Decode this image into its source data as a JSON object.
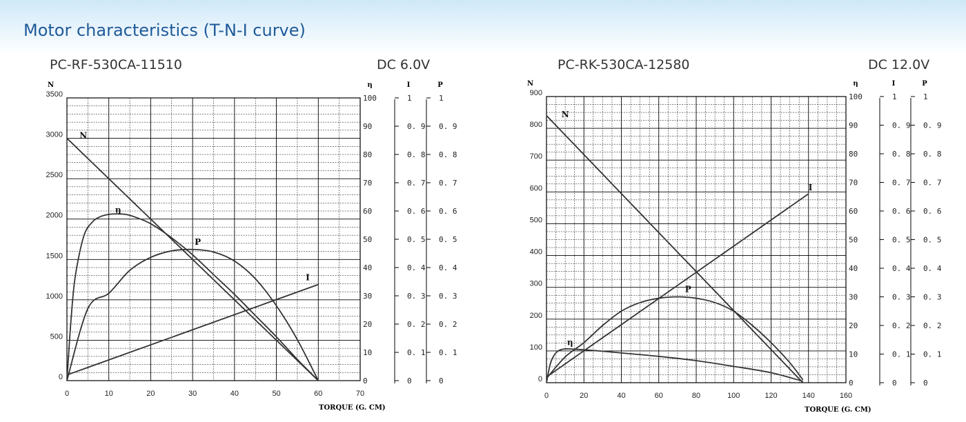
{
  "page": {
    "title": "Motor characteristics (T-N-I curve)"
  },
  "panels": [
    {
      "model": "PC-RF-530CA-11510",
      "voltage": "DC 6.0V"
    },
    {
      "model": "PC-RK-530CA-12580",
      "voltage": "DC 12.0V"
    }
  ],
  "colors": {
    "title": "#1f5a99",
    "curve": "#333333",
    "grid": "#000000"
  },
  "chart_data": [
    {
      "type": "line",
      "title": "PC-RF-530CA-11510",
      "xlabel": "TORQUE (G. CM)",
      "xlim": [
        0,
        70
      ],
      "xticks": [
        0,
        10,
        20,
        30,
        40,
        50,
        60,
        70
      ],
      "left_axis": {
        "label": "N",
        "lim": [
          0,
          3500
        ],
        "ticks": [
          0,
          500,
          1000,
          1500,
          2000,
          2500,
          3000,
          3500
        ]
      },
      "right_axes": [
        {
          "label": "η",
          "lim": [
            0,
            100
          ],
          "ticks": [
            "0",
            "10",
            "20",
            "30",
            "40",
            "50",
            "60",
            "70",
            "80",
            "90",
            "100"
          ]
        },
        {
          "label": "I",
          "lim": [
            0,
            1
          ],
          "ticks": [
            "0",
            "0. 1",
            "0. 2",
            "0. 3",
            "0. 4",
            "0. 5",
            "0. 6",
            "0. 7",
            "0. 8",
            "0. 9",
            "1"
          ]
        },
        {
          "label": "P",
          "lim": [
            0,
            1
          ],
          "ticks": [
            "0",
            "0. 1",
            "0. 2",
            "0. 3",
            "0. 4",
            "0. 5",
            "0. 6",
            "0. 7",
            "0. 8",
            "0. 9",
            "1"
          ]
        }
      ],
      "series": [
        {
          "name": "N",
          "axis": "N",
          "x": [
            0,
            60
          ],
          "y": [
            3000,
            0
          ]
        },
        {
          "name": "η",
          "axis": "η",
          "x": [
            0,
            1,
            2,
            4,
            6,
            8,
            10,
            12,
            14,
            16,
            20,
            25,
            30,
            35,
            40,
            45,
            50,
            55,
            58,
            60
          ],
          "y": [
            0,
            22,
            37,
            51,
            56,
            58,
            58.8,
            59,
            58.8,
            58,
            55.5,
            50.5,
            44.5,
            37.5,
            30.5,
            23,
            15.5,
            7.5,
            3,
            0
          ]
        },
        {
          "name": "P",
          "axis": "P",
          "x": [
            0,
            5,
            10,
            15,
            20,
            25,
            30,
            35,
            40,
            45,
            50,
            55,
            60
          ],
          "y": [
            0,
            0.255,
            0.309,
            0.39,
            0.436,
            0.459,
            0.464,
            0.455,
            0.423,
            0.36,
            0.265,
            0.145,
            0
          ]
        },
        {
          "name": "I",
          "axis": "I",
          "x": [
            0,
            60
          ],
          "y": [
            0.02,
            0.34
          ]
        }
      ],
      "labels": [
        {
          "text": "N",
          "x": 3,
          "y": 3000
        },
        {
          "text": "η",
          "x": 11.5,
          "y": 2080
        },
        {
          "text": "P",
          "x": 30.5,
          "y": 1680
        },
        {
          "text": "I",
          "x": 57,
          "y": 1240
        }
      ]
    },
    {
      "type": "line",
      "title": "PC-RK-530CA-12580",
      "xlabel": "TORQUE (G. CM)",
      "xlim": [
        0,
        160
      ],
      "xticks": [
        0,
        20,
        40,
        60,
        80,
        100,
        120,
        140,
        160
      ],
      "left_axis": {
        "label": "N",
        "lim": [
          0,
          900
        ],
        "ticks": [
          0,
          100,
          200,
          300,
          400,
          500,
          600,
          700,
          800,
          900
        ]
      },
      "right_axes": [
        {
          "label": "η",
          "lim": [
            0,
            100
          ],
          "ticks": [
            "0",
            "10",
            "20",
            "30",
            "40",
            "50",
            "60",
            "70",
            "80",
            "90",
            "100"
          ]
        },
        {
          "label": "I",
          "lim": [
            0,
            1
          ],
          "ticks": [
            "0",
            "0. 1",
            "0. 2",
            "0. 3",
            "0. 4",
            "0. 5",
            "0. 6",
            "0. 7",
            "0. 8",
            "0. 9",
            "1"
          ]
        },
        {
          "label": "P",
          "lim": [
            0,
            1
          ],
          "ticks": [
            "0",
            "0. 1",
            "0. 2",
            "0. 3",
            "0. 4",
            "0. 5",
            "0. 6",
            "0. 7",
            "0. 8",
            "0. 9",
            "1"
          ]
        }
      ],
      "series": [
        {
          "name": "N",
          "axis": "N",
          "x": [
            0,
            137
          ],
          "y": [
            840,
            0
          ]
        },
        {
          "name": "η",
          "axis": "η",
          "x": [
            0,
            2,
            4,
            6,
            8,
            10,
            12,
            15,
            20,
            30,
            40,
            60,
            80,
            100,
            120,
            137
          ],
          "y": [
            0,
            6.5,
            9.5,
            11,
            11.6,
            11.8,
            11.8,
            11.7,
            11.5,
            11,
            10.4,
            9.2,
            7.7,
            5.7,
            3.5,
            0.5
          ]
        },
        {
          "name": "P",
          "axis": "P",
          "x": [
            0,
            10,
            20,
            30,
            40,
            50,
            60,
            70,
            80,
            90,
            100,
            110,
            120,
            130,
            137
          ],
          "y": [
            0.015,
            0.09,
            0.14,
            0.2,
            0.25,
            0.28,
            0.295,
            0.3,
            0.295,
            0.28,
            0.25,
            0.2,
            0.14,
            0.07,
            0.01
          ]
        },
        {
          "name": "I",
          "axis": "I",
          "x": [
            0,
            140
          ],
          "y": [
            0.02,
            0.66
          ]
        }
      ],
      "labels": [
        {
          "text": "N",
          "x": 8,
          "y": 835
        },
        {
          "text": "η",
          "x": 11,
          "y": 118
        },
        {
          "text": "P",
          "x": 74,
          "y": 285
        },
        {
          "text": "I",
          "x": 140,
          "y": 605
        }
      ]
    }
  ]
}
